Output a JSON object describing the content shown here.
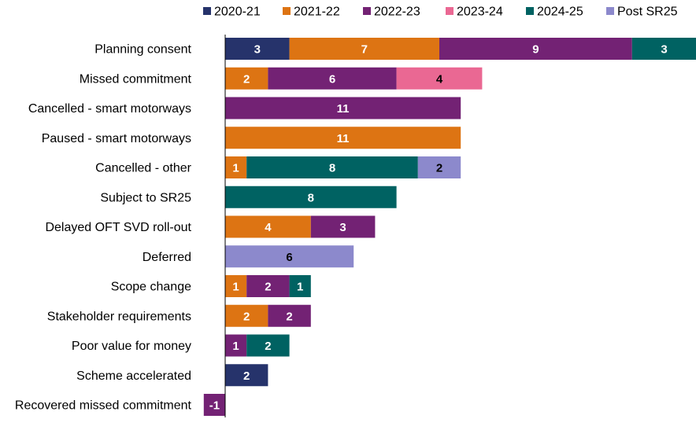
{
  "chart_data": {
    "type": "bar",
    "orientation": "horizontal",
    "stacked": true,
    "categories": [
      "Planning consent",
      "Missed commitment",
      "Cancelled - smart motorways",
      "Paused - smart motorways",
      "Cancelled - other",
      "Subject to SR25",
      "Delayed OFT SVD roll-out",
      "Deferred",
      "Scope change",
      "Stakeholder requirements",
      "Poor value for money",
      "Scheme accelerated",
      "Recovered missed commitment"
    ],
    "series": [
      {
        "name": "2020-21",
        "color": "#26336b",
        "label_color": "#ffffff",
        "values": [
          3,
          0,
          0,
          0,
          0,
          0,
          0,
          0,
          0,
          0,
          0,
          2,
          0
        ]
      },
      {
        "name": "2021-22",
        "color": "#dd7413",
        "label_color": "#ffffff",
        "values": [
          7,
          2,
          0,
          11,
          1,
          0,
          4,
          0,
          1,
          2,
          0,
          0,
          0
        ]
      },
      {
        "name": "2022-23",
        "color": "#732274",
        "label_color": "#ffffff",
        "values": [
          9,
          6,
          11,
          0,
          0,
          0,
          3,
          0,
          2,
          2,
          1,
          0,
          -1
        ]
      },
      {
        "name": "2023-24",
        "color": "#ea6893",
        "label_color": "#000000",
        "values": [
          0,
          4,
          0,
          0,
          0,
          0,
          0,
          0,
          0,
          0,
          0,
          0,
          0
        ]
      },
      {
        "name": "2024-25",
        "color": "#006262",
        "label_color": "#ffffff",
        "values": [
          3,
          0,
          0,
          0,
          8,
          8,
          0,
          0,
          1,
          0,
          2,
          0,
          0
        ]
      },
      {
        "name": "Post SR25",
        "color": "#8c89cc",
        "label_color": "#000000",
        "values": [
          0,
          0,
          0,
          0,
          2,
          0,
          0,
          6,
          0,
          0,
          0,
          0,
          0
        ]
      }
    ],
    "xlim": [
      -1,
      22
    ],
    "legend": "top",
    "grid": false,
    "title": "",
    "xlabel": "",
    "ylabel": ""
  }
}
